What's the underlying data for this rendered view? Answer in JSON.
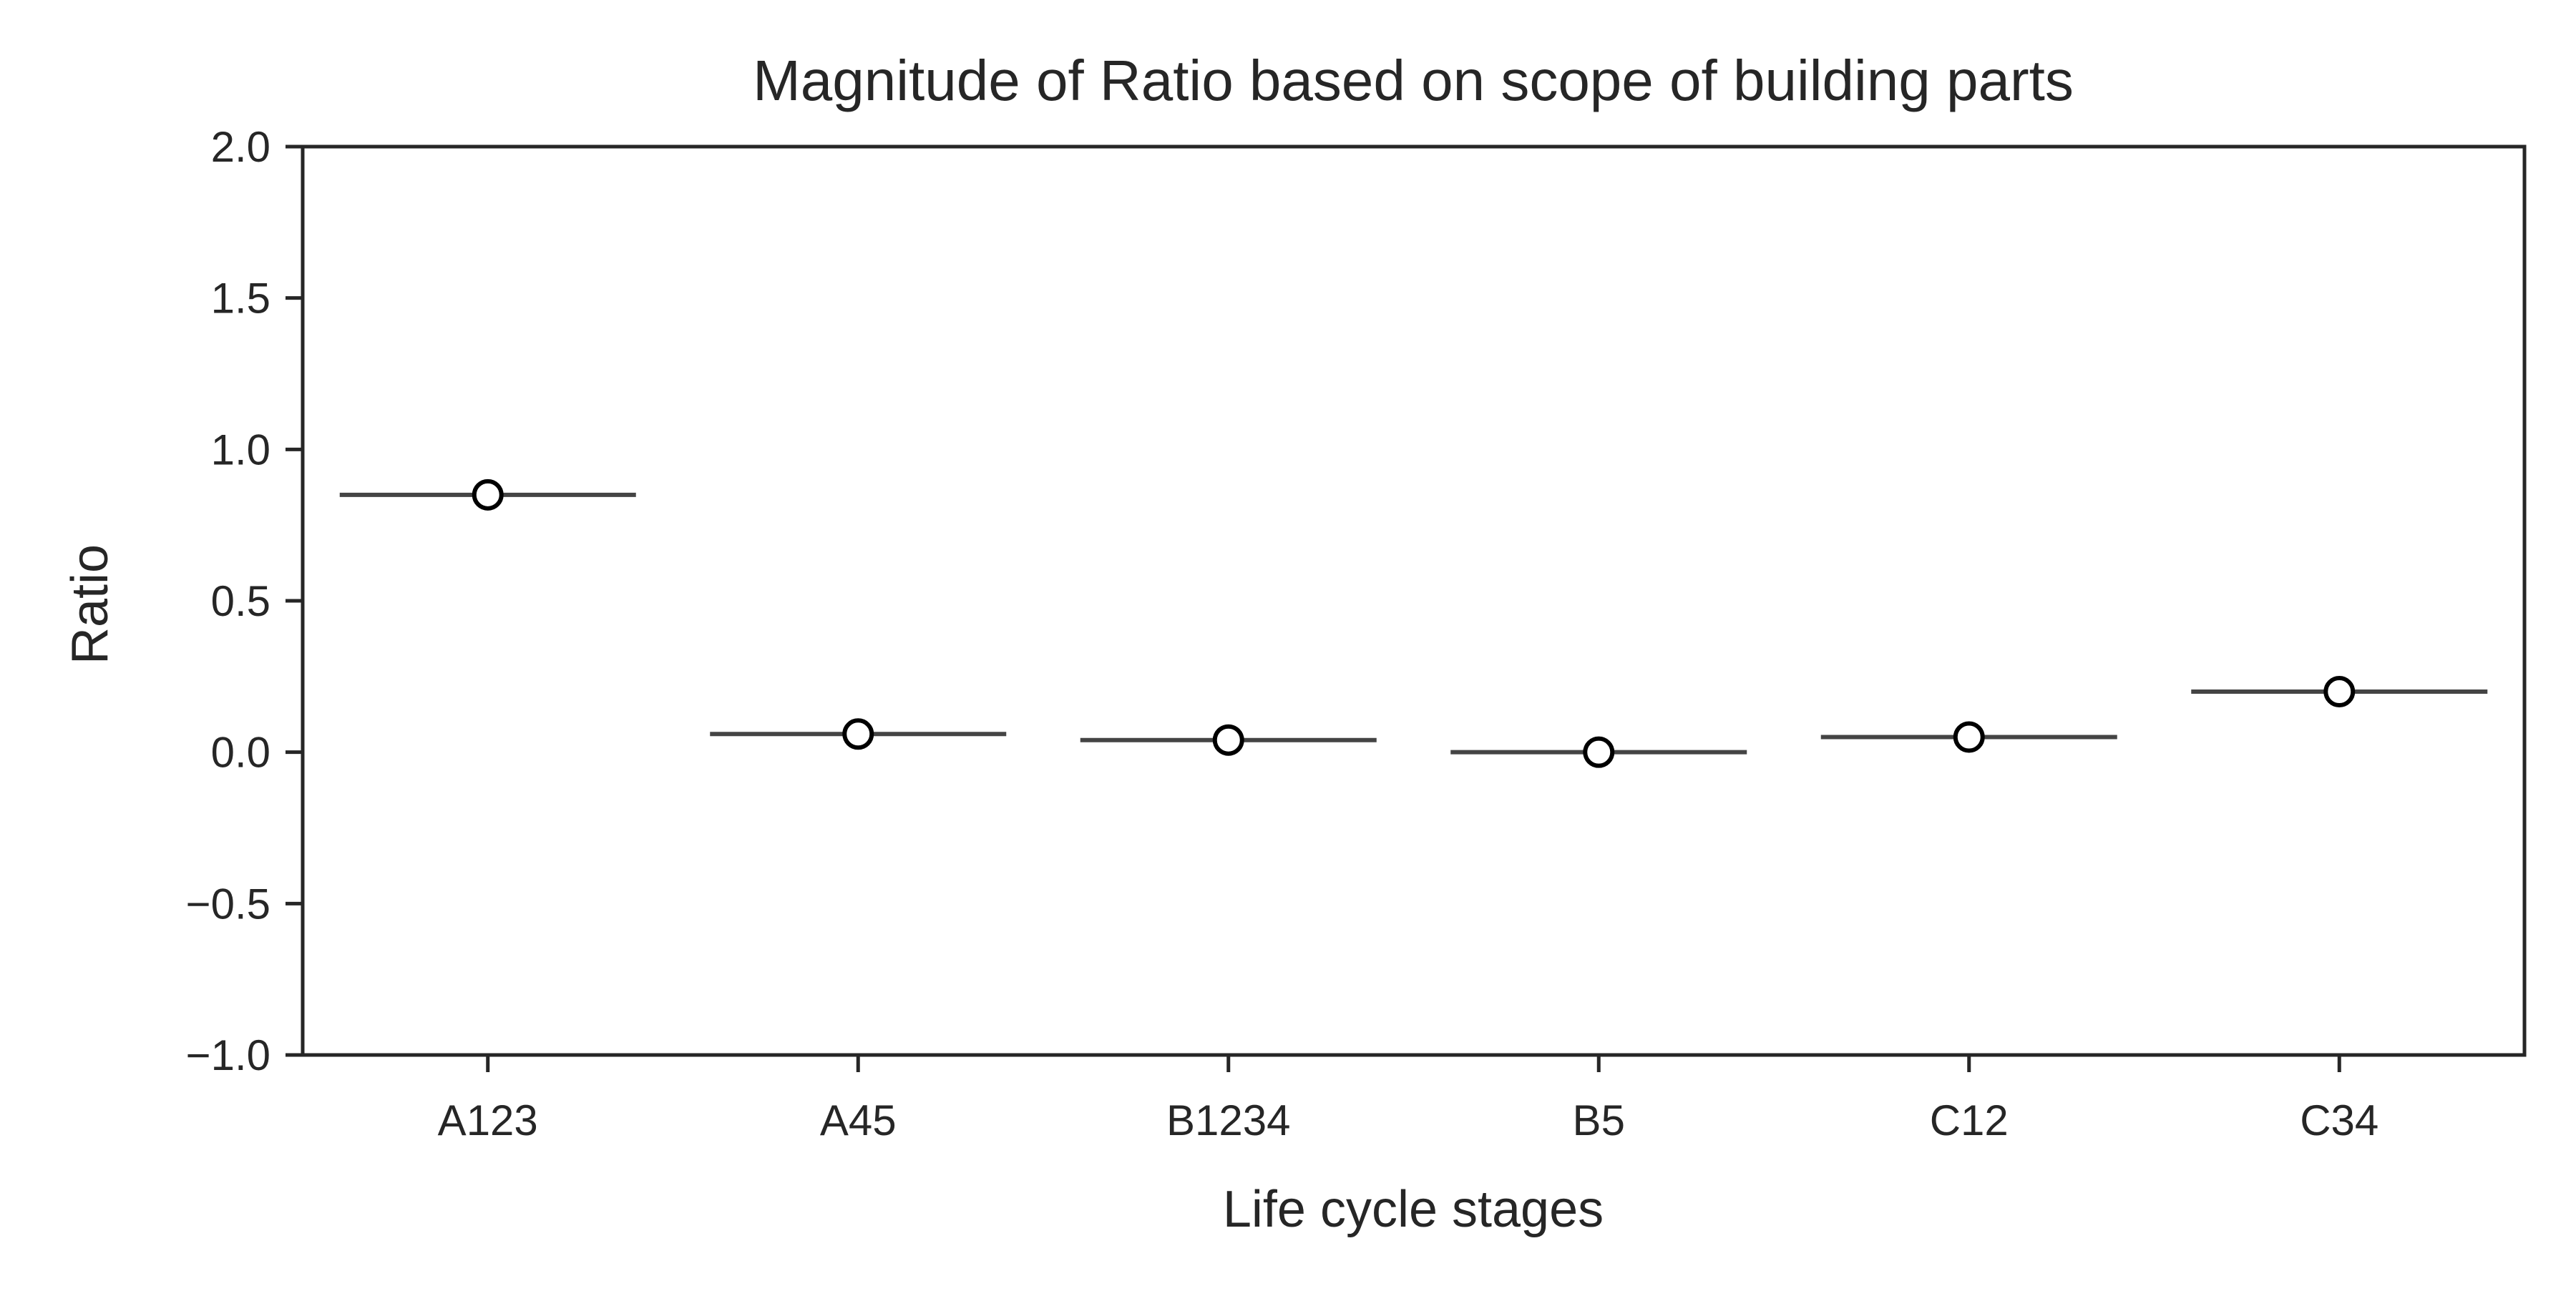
{
  "chart_data": {
    "type": "box",
    "title": "Magnitude of Ratio based on scope of building parts",
    "xlabel": "Life cycle stages",
    "ylabel": "Ratio",
    "categories": [
      "A123",
      "A45",
      "B1234",
      "B5",
      "C12",
      "C34"
    ],
    "values": [
      0.85,
      0.06,
      0.04,
      0.0,
      0.05,
      0.2
    ],
    "ylim": [
      -1.0,
      2.0
    ],
    "yticks": [
      -1.0,
      -0.5,
      0.0,
      0.5,
      1.0,
      1.5,
      2.0
    ],
    "ytick_labels": [
      "−1.0",
      "−0.5",
      "0.0",
      "0.5",
      "1.0",
      "1.5",
      "2.0"
    ],
    "grid": false,
    "legend": "none",
    "colors": {
      "median_line": "#444444",
      "mean_marker_fill": "#ffffff",
      "mean_marker_edge": "#000000",
      "axes": "#262626"
    }
  }
}
